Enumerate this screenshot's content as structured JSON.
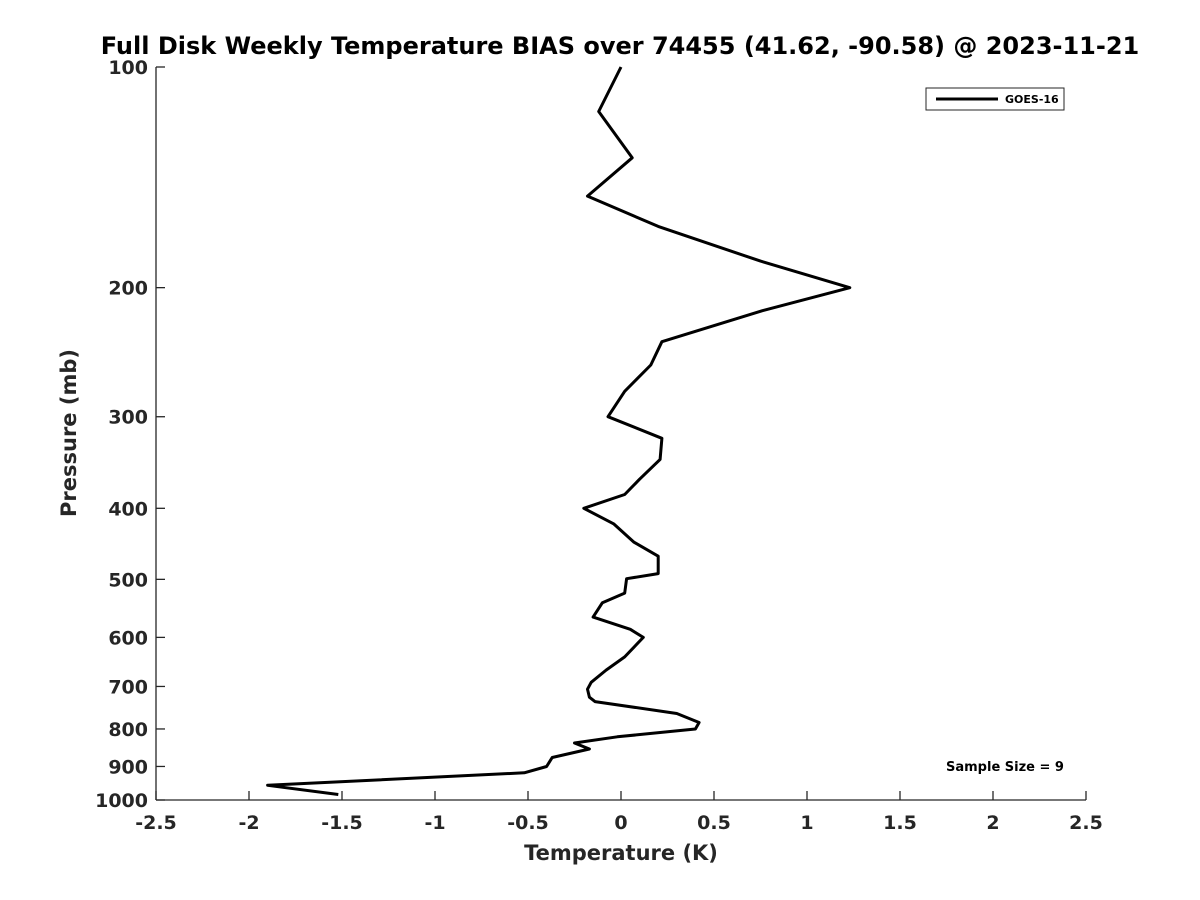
{
  "chart_data": {
    "type": "line",
    "title": "Full Disk Weekly Temperature BIAS over 74455 (41.62, -90.58) @ 2023-11-21",
    "xlabel": "Temperature (K)",
    "ylabel": "Pressure (mb)",
    "xlim": [
      -2.5,
      2.5
    ],
    "ylim": [
      100,
      1000
    ],
    "y_scale": "log",
    "y_reversed": true,
    "x_ticks": [
      -2.5,
      -2,
      -1.5,
      -1,
      -0.5,
      0,
      0.5,
      1,
      1.5,
      2,
      2.5
    ],
    "x_tick_labels": [
      "-2.5",
      "-2",
      "-1.5",
      "-1",
      "-0.5",
      "0",
      "0.5",
      "1",
      "1.5",
      "2",
      "2.5"
    ],
    "y_ticks": [
      100,
      200,
      300,
      400,
      500,
      600,
      700,
      800,
      900,
      1000
    ],
    "y_tick_labels": [
      "100",
      "200",
      "300",
      "400",
      "500",
      "600",
      "700",
      "800",
      "900",
      "1000"
    ],
    "grid": false,
    "legend_position": "top-right",
    "line_color": "#000000",
    "series": [
      {
        "name": "GOES-16",
        "points": [
          {
            "x": 0.0,
            "y": 100
          },
          {
            "x": -0.12,
            "y": 115
          },
          {
            "x": 0.06,
            "y": 133
          },
          {
            "x": -0.18,
            "y": 150
          },
          {
            "x": 0.2,
            "y": 165
          },
          {
            "x": 0.75,
            "y": 184
          },
          {
            "x": 1.23,
            "y": 200
          },
          {
            "x": 0.76,
            "y": 215
          },
          {
            "x": 0.22,
            "y": 237
          },
          {
            "x": 0.16,
            "y": 255
          },
          {
            "x": 0.02,
            "y": 277
          },
          {
            "x": -0.07,
            "y": 300
          },
          {
            "x": 0.22,
            "y": 321
          },
          {
            "x": 0.21,
            "y": 343
          },
          {
            "x": 0.1,
            "y": 365
          },
          {
            "x": 0.02,
            "y": 383
          },
          {
            "x": -0.2,
            "y": 400
          },
          {
            "x": -0.04,
            "y": 420
          },
          {
            "x": 0.07,
            "y": 445
          },
          {
            "x": 0.2,
            "y": 465
          },
          {
            "x": 0.2,
            "y": 491
          },
          {
            "x": 0.03,
            "y": 499
          },
          {
            "x": 0.02,
            "y": 522
          },
          {
            "x": -0.1,
            "y": 538
          },
          {
            "x": -0.15,
            "y": 563
          },
          {
            "x": 0.05,
            "y": 585
          },
          {
            "x": 0.12,
            "y": 600
          },
          {
            "x": 0.02,
            "y": 638
          },
          {
            "x": -0.08,
            "y": 665
          },
          {
            "x": -0.16,
            "y": 691
          },
          {
            "x": -0.18,
            "y": 706
          },
          {
            "x": -0.17,
            "y": 724
          },
          {
            "x": -0.14,
            "y": 734
          },
          {
            "x": 0.3,
            "y": 762
          },
          {
            "x": 0.42,
            "y": 784
          },
          {
            "x": 0.4,
            "y": 800
          },
          {
            "x": -0.02,
            "y": 820
          },
          {
            "x": -0.25,
            "y": 836
          },
          {
            "x": -0.17,
            "y": 852
          },
          {
            "x": -0.37,
            "y": 875
          },
          {
            "x": -0.4,
            "y": 900
          },
          {
            "x": -0.52,
            "y": 918
          },
          {
            "x": -1.9,
            "y": 955
          },
          {
            "x": -1.52,
            "y": 983
          }
        ]
      }
    ],
    "annotations": [
      "Sample Size = 9"
    ]
  }
}
